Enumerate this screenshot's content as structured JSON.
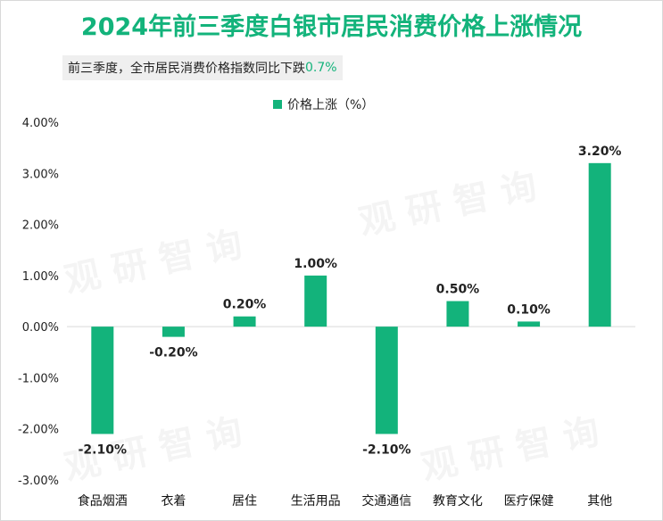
{
  "title": "2024年前三季度白银市居民消费价格上涨情况",
  "subtitle": {
    "text": "前三季度，全市居民消费价格指数同比下跌",
    "highlight": "0.7%"
  },
  "colors": {
    "accent": "#13b37b",
    "axis": "#d9d9d9"
  },
  "watermark_text": "观研智询",
  "chart_data": {
    "type": "bar",
    "legend": [
      "价格上涨（%）"
    ],
    "categories": [
      "食品烟酒",
      "衣着",
      "居住",
      "生活用品",
      "交通通信",
      "教育文化",
      "医疗保健",
      "其他"
    ],
    "series": [
      {
        "name": "价格上涨（%）",
        "values": [
          -2.1,
          -0.2,
          0.2,
          1.0,
          -2.1,
          0.5,
          0.1,
          3.2
        ]
      }
    ],
    "data_labels": [
      "-2.10%",
      "-0.20%",
      "0.20%",
      "1.00%",
      "-2.10%",
      "0.50%",
      "0.10%",
      "3.20%"
    ],
    "yticks": [
      "4.00%",
      "3.00%",
      "2.00%",
      "1.00%",
      "0.00%",
      "-1.00%",
      "-2.00%",
      "-3.00%"
    ],
    "ylim": [
      -3,
      4
    ],
    "xlabel": "",
    "ylabel": ""
  }
}
